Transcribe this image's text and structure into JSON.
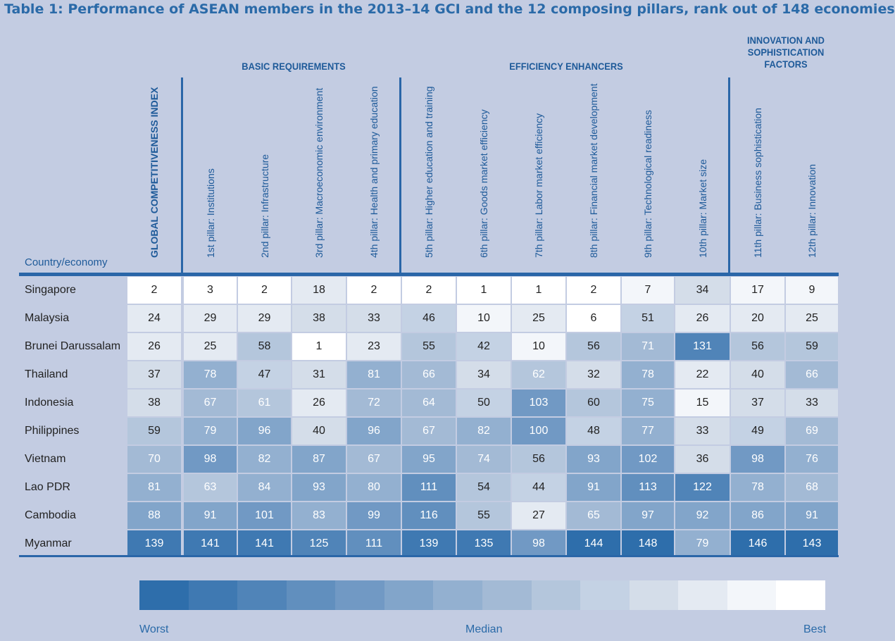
{
  "title": "Table 1: Performance of ASEAN members in the 2013–14 GCI and the 12 composing pillars, rank out of 148 economies",
  "groups": {
    "basic": "BASIC REQUIREMENTS",
    "efficiency": "EFFICIENCY ENHANCERS",
    "innovation": "INNOVATION AND SOPHISTICATION FACTORS"
  },
  "country_header": "Country/economy",
  "columns": [
    "GLOBAL COMPETITIVENESS INDEX",
    "1st pillar: Institutions",
    "2nd pillar: Infrastructure",
    "3rd pillar: Macroeconomic environment",
    "4th pillar: Health and primary education",
    "5th pillar: Higher education and training",
    "6th pillar: Goods market efficiency",
    "7th pillar: Labor market efficiency",
    "8th pillar: Financial market development",
    "9th pillar: Technological readiness",
    "10th pillar: Market size",
    "11th pillar: Business sophistication",
    "12th pillar: Innovation"
  ],
  "rows": [
    {
      "country": "Singapore",
      "ranks": [
        2,
        3,
        2,
        18,
        2,
        2,
        1,
        1,
        2,
        7,
        34,
        17,
        9
      ]
    },
    {
      "country": "Malaysia",
      "ranks": [
        24,
        29,
        29,
        38,
        33,
        46,
        10,
        25,
        6,
        51,
        26,
        20,
        25
      ]
    },
    {
      "country": "Brunei Darussalam",
      "ranks": [
        26,
        25,
        58,
        1,
        23,
        55,
        42,
        10,
        56,
        71,
        131,
        56,
        59
      ]
    },
    {
      "country": "Thailand",
      "ranks": [
        37,
        78,
        47,
        31,
        81,
        66,
        34,
        62,
        32,
        78,
        22,
        40,
        66
      ]
    },
    {
      "country": "Indonesia",
      "ranks": [
        38,
        67,
        61,
        26,
        72,
        64,
        50,
        103,
        60,
        75,
        15,
        37,
        33
      ]
    },
    {
      "country": "Philippines",
      "ranks": [
        59,
        79,
        96,
        40,
        96,
        67,
        82,
        100,
        48,
        77,
        33,
        49,
        69
      ]
    },
    {
      "country": "Vietnam",
      "ranks": [
        70,
        98,
        82,
        87,
        67,
        95,
        74,
        56,
        93,
        102,
        36,
        98,
        76
      ]
    },
    {
      "country": "Lao PDR",
      "ranks": [
        81,
        63,
        84,
        93,
        80,
        111,
        54,
        44,
        91,
        113,
        122,
        78,
        68
      ]
    },
    {
      "country": "Cambodia",
      "ranks": [
        88,
        91,
        101,
        83,
        99,
        116,
        55,
        27,
        65,
        97,
        92,
        86,
        91
      ]
    },
    {
      "country": "Myanmar",
      "ranks": [
        139,
        141,
        141,
        125,
        111,
        139,
        135,
        98,
        144,
        148,
        79,
        146,
        143
      ]
    }
  ],
  "legend": {
    "colors": [
      "#2e6eab",
      "#3f79b2",
      "#5084b8",
      "#618fbe",
      "#7199c4",
      "#82a5ca",
      "#93b0d0",
      "#a3bad5",
      "#b4c6dc",
      "#c4d2e4",
      "#d4dde9",
      "#e4eaf2",
      "#f3f6fa",
      "#ffffff"
    ],
    "worst": "Worst",
    "median": "Median",
    "best": "Best"
  }
}
